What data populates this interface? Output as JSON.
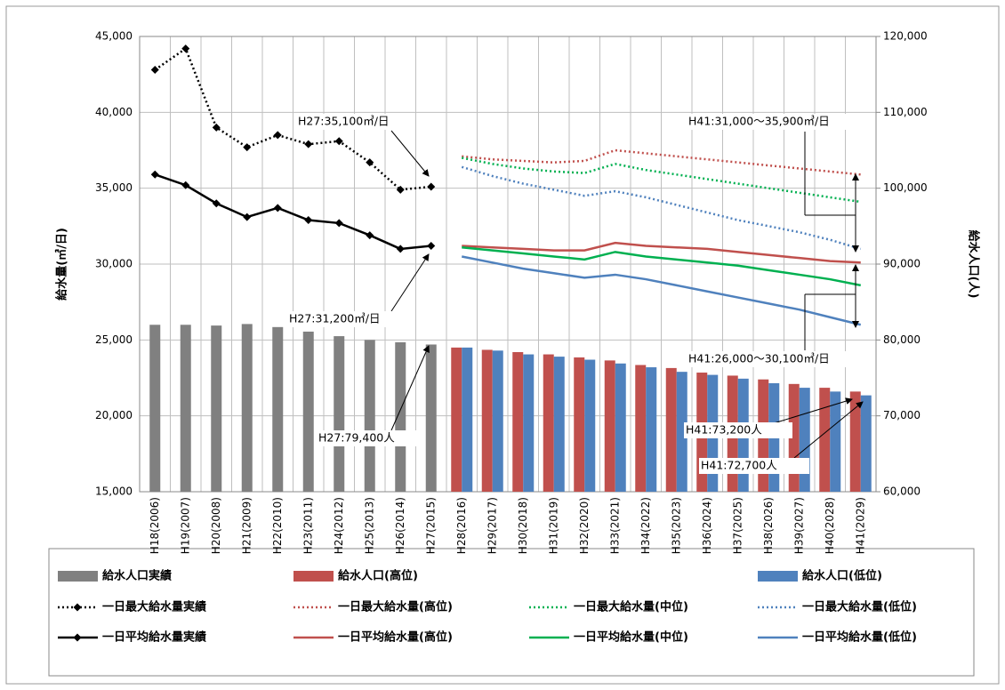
{
  "chart_data": {
    "type": "bar",
    "ylabel": "給水量(㎥/日)",
    "y2label": "給水人口(人)",
    "categories": [
      "H18(2006)",
      "H19(2007)",
      "H20(2008)",
      "H21(2009)",
      "H22(2010)",
      "H23(2011)",
      "H24(2012)",
      "H25(2013)",
      "H26(2014)",
      "H27(2015)",
      "H28(2016)",
      "H29(2017)",
      "H30(2018)",
      "H31(2019)",
      "H32(2020)",
      "H33(2021)",
      "H34(2022)",
      "H35(2023)",
      "H36(2024)",
      "H37(2025)",
      "H38(2026)",
      "H39(2027)",
      "H40(2028)",
      "H41(2029)"
    ],
    "ylim": [
      15000,
      45000
    ],
    "yticks": [
      {
        "value": 15000,
        "label": "15,000"
      },
      {
        "value": 20000,
        "label": "20,000"
      },
      {
        "value": 25000,
        "label": "25,000"
      },
      {
        "value": 30000,
        "label": "30,000"
      },
      {
        "value": 35000,
        "label": "35,000"
      },
      {
        "value": 40000,
        "label": "40,000"
      },
      {
        "value": 45000,
        "label": "45,000"
      }
    ],
    "y2lim": [
      60000,
      120000
    ],
    "y2ticks": [
      {
        "value": 60000,
        "label": "60,000"
      },
      {
        "value": 70000,
        "label": "70,000"
      },
      {
        "value": 80000,
        "label": "80,000"
      },
      {
        "value": 90000,
        "label": "90,000"
      },
      {
        "value": 100000,
        "label": "100,000"
      },
      {
        "value": 110000,
        "label": "110,000"
      },
      {
        "value": 120000,
        "label": "120,000"
      }
    ],
    "grid": true,
    "series": [
      {
        "name": "給水人口実績",
        "type": "bar",
        "axis": "y2",
        "color": "#808080",
        "values": [
          82000,
          82000,
          81900,
          82100,
          81700,
          81100,
          80500,
          80000,
          79700,
          79400,
          null,
          null,
          null,
          null,
          null,
          null,
          null,
          null,
          null,
          null,
          null,
          null,
          null,
          null
        ]
      },
      {
        "name": "給水人口(高位)",
        "type": "bar",
        "axis": "y2",
        "color": "#c0504d",
        "values": [
          null,
          null,
          null,
          null,
          null,
          null,
          null,
          null,
          null,
          null,
          79000,
          78700,
          78400,
          78100,
          77700,
          77300,
          76700,
          76300,
          75700,
          75300,
          74800,
          74200,
          73700,
          73200
        ]
      },
      {
        "name": "給水人口(低位)",
        "type": "bar",
        "axis": "y2",
        "color": "#4f81bd",
        "values": [
          null,
          null,
          null,
          null,
          null,
          null,
          null,
          null,
          null,
          null,
          79000,
          78600,
          78100,
          77800,
          77400,
          76900,
          76400,
          75800,
          75400,
          74900,
          74300,
          73700,
          73200,
          72700
        ]
      },
      {
        "name": "一日最大給水量実績",
        "type": "line",
        "color": "#000000",
        "dashed": true,
        "marker": "diamond",
        "values": [
          42800,
          44200,
          39000,
          37700,
          38500,
          37900,
          38100,
          36700,
          34900,
          35100,
          null,
          null,
          null,
          null,
          null,
          null,
          null,
          null,
          null,
          null,
          null,
          null,
          null,
          null
        ]
      },
      {
        "name": "一日最大給水量(高位)",
        "type": "line",
        "color": "#c0504d",
        "dashed": true,
        "values": [
          null,
          null,
          null,
          null,
          null,
          null,
          null,
          null,
          null,
          null,
          37100,
          36900,
          36800,
          36700,
          36800,
          37500,
          37300,
          37100,
          36900,
          36700,
          36500,
          36300,
          36100,
          35900
        ]
      },
      {
        "name": "一日最大給水量(中位)",
        "type": "line",
        "color": "#00b050",
        "dashed": true,
        "values": [
          null,
          null,
          null,
          null,
          null,
          null,
          null,
          null,
          null,
          null,
          37000,
          36600,
          36300,
          36100,
          36000,
          36600,
          36200,
          35900,
          35600,
          35300,
          35000,
          34700,
          34400,
          34100
        ]
      },
      {
        "name": "一日最大給水量(低位)",
        "type": "line",
        "color": "#4f81bd",
        "dashed": true,
        "values": [
          null,
          null,
          null,
          null,
          null,
          null,
          null,
          null,
          null,
          null,
          36400,
          35800,
          35300,
          34900,
          34500,
          34800,
          34400,
          33900,
          33400,
          32900,
          32500,
          32100,
          31600,
          31000
        ]
      },
      {
        "name": "一日平均給水量実績",
        "type": "line",
        "color": "#000000",
        "marker": "diamond",
        "values": [
          35900,
          35200,
          34000,
          33100,
          33700,
          32900,
          32700,
          31900,
          31000,
          31200,
          null,
          null,
          null,
          null,
          null,
          null,
          null,
          null,
          null,
          null,
          null,
          null,
          null,
          null
        ]
      },
      {
        "name": "一日平均給水量(高位)",
        "type": "line",
        "color": "#c0504d",
        "values": [
          null,
          null,
          null,
          null,
          null,
          null,
          null,
          null,
          null,
          null,
          31200,
          31100,
          31000,
          30900,
          30900,
          31400,
          31200,
          31100,
          31000,
          30800,
          30600,
          30400,
          30200,
          30100
        ]
      },
      {
        "name": "一日平均給水量(中位)",
        "type": "line",
        "color": "#00b050",
        "values": [
          null,
          null,
          null,
          null,
          null,
          null,
          null,
          null,
          null,
          null,
          31100,
          30900,
          30700,
          30500,
          30300,
          30800,
          30500,
          30300,
          30100,
          29900,
          29600,
          29300,
          29000,
          28600
        ]
      },
      {
        "name": "一日平均給水量(低位)",
        "type": "line",
        "color": "#4f81bd",
        "values": [
          null,
          null,
          null,
          null,
          null,
          null,
          null,
          null,
          null,
          null,
          30500,
          30100,
          29700,
          29400,
          29100,
          29300,
          29000,
          28600,
          28200,
          27800,
          27400,
          27000,
          26500,
          26000
        ]
      }
    ],
    "annotations": [
      "H27:35,100㎥/日",
      "H27:31,200㎥/日",
      "H27:79,400人",
      "H41:31,000～35,900㎥/日",
      "H41:26,000～30,100㎥/日",
      "H41:73,200人",
      "H41:72,700人"
    ]
  }
}
